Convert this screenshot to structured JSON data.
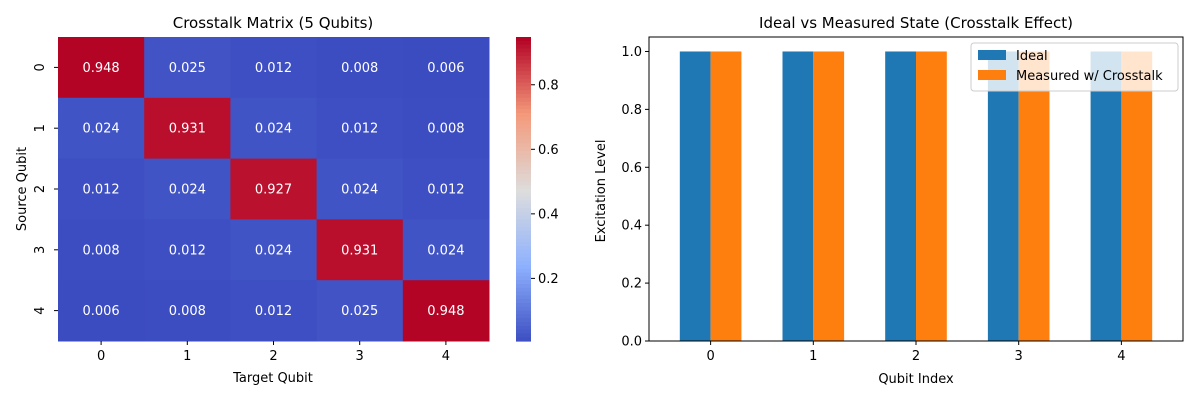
{
  "chart_data": [
    {
      "type": "heatmap",
      "title": "Crosstalk Matrix (5 Qubits)",
      "xlabel": "Target Qubit",
      "ylabel": "Source Qubit",
      "x_categories": [
        "0",
        "1",
        "2",
        "3",
        "4"
      ],
      "y_categories": [
        "0",
        "1",
        "2",
        "3",
        "4"
      ],
      "values": [
        [
          0.948,
          0.025,
          0.012,
          0.008,
          0.006
        ],
        [
          0.024,
          0.931,
          0.024,
          0.012,
          0.008
        ],
        [
          0.012,
          0.024,
          0.927,
          0.024,
          0.012
        ],
        [
          0.008,
          0.012,
          0.024,
          0.931,
          0.024
        ],
        [
          0.006,
          0.008,
          0.012,
          0.025,
          0.948
        ]
      ],
      "colormap": "coolwarm",
      "colorbar": {
        "min": 0.006,
        "max": 0.948,
        "ticks": [
          "0.2",
          "0.4",
          "0.6",
          "0.8"
        ],
        "tick_values": [
          0.2,
          0.4,
          0.6,
          0.8
        ]
      }
    },
    {
      "type": "bar",
      "title": "Ideal vs Measured State (Crosstalk Effect)",
      "xlabel": "Qubit Index",
      "ylabel": "Excitation Level",
      "categories": [
        "0",
        "1",
        "2",
        "3",
        "4"
      ],
      "ylim": [
        0,
        1.05
      ],
      "yticks": [
        "0.0",
        "0.2",
        "0.4",
        "0.6",
        "0.8",
        "1.0"
      ],
      "ytick_values": [
        0,
        0.2,
        0.4,
        0.6,
        0.8,
        1.0
      ],
      "legend_position": "top-right",
      "series": [
        {
          "name": "Ideal",
          "color": "#1f77b4",
          "values": [
            1,
            1,
            1,
            1,
            1
          ]
        },
        {
          "name": "Measured w/ Crosstalk",
          "color": "#ff7f0e",
          "values": [
            1,
            1,
            1,
            1,
            1
          ]
        }
      ]
    }
  ]
}
